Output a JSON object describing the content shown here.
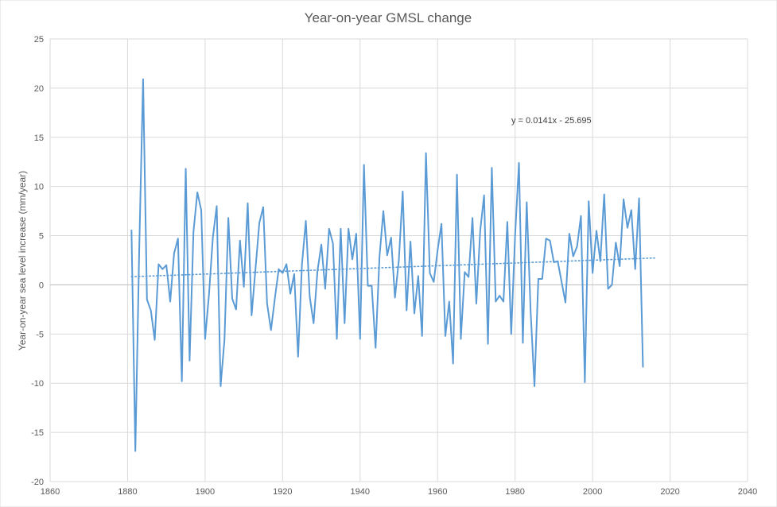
{
  "chart_data": {
    "type": "line",
    "title": "Year-on-year GMSL change",
    "xlabel": "",
    "ylabel": "Year-on-year sea level increase (mm/year)",
    "xlim": [
      1860,
      2040
    ],
    "ylim": [
      -20,
      25
    ],
    "x_ticks": [
      "1860",
      "1880",
      "1900",
      "1920",
      "1940",
      "1960",
      "1980",
      "2000",
      "2020",
      "2040"
    ],
    "y_ticks": [
      "-20",
      "-15",
      "-10",
      "-5",
      "0",
      "5",
      "10",
      "15",
      "20",
      "25"
    ],
    "grid": "vertical and horizontal major gridlines",
    "legend": "none",
    "series_color": "#5b9bd5",
    "gridline_color": "#d9d9d9",
    "trendline": {
      "type": "linear, dotted",
      "equation": "y = 0.0141x - 25.695",
      "x_range": [
        1881,
        2016
      ],
      "slope": 0.0141,
      "intercept": -25.695
    },
    "series": [
      {
        "x": [
          1881,
          1882,
          1883,
          1884,
          1885,
          1886,
          1887,
          1888,
          1889,
          1890,
          1891,
          1892,
          1893,
          1894,
          1895,
          1896,
          1897,
          1898,
          1899,
          1900,
          1901,
          1902,
          1903,
          1904,
          1905,
          1906,
          1907,
          1908,
          1909,
          1910,
          1911,
          1912,
          1913,
          1914,
          1915,
          1916,
          1917,
          1918,
          1919,
          1920,
          1921,
          1922,
          1923,
          1924,
          1925,
          1926,
          1927,
          1928,
          1929,
          1930,
          1931,
          1932,
          1933,
          1934,
          1935,
          1936,
          1937,
          1938,
          1939,
          1940,
          1941,
          1942,
          1943,
          1944,
          1945,
          1946,
          1947,
          1948,
          1949,
          1950,
          1951,
          1952,
          1953,
          1954,
          1955,
          1956,
          1957,
          1958,
          1959,
          1960,
          1961,
          1962,
          1963,
          1964,
          1965,
          1966,
          1967,
          1968,
          1969,
          1970,
          1971,
          1972,
          1973,
          1974,
          1975,
          1976,
          1977,
          1978,
          1979,
          1980,
          1981,
          1982,
          1983,
          1984,
          1985,
          1986,
          1987,
          1988,
          1989,
          1990,
          1991,
          1992,
          1993,
          1994,
          1995,
          1996,
          1997,
          1998,
          1999,
          2000,
          2001,
          2002,
          2003,
          2004,
          2005,
          2006,
          2007,
          2008,
          2009,
          2010,
          2011,
          2012,
          2013
        ],
        "values": [
          5.6,
          -16.9,
          3.6,
          20.9,
          -1.5,
          -2.6,
          -5.6,
          2.1,
          1.6,
          2.0,
          -1.7,
          3.2,
          4.7,
          -9.8,
          11.8,
          -7.7,
          5.4,
          9.4,
          7.6,
          -5.5,
          -1.0,
          4.8,
          8.0,
          -10.3,
          -5.6,
          6.8,
          -1.4,
          -2.5,
          4.5,
          -0.2,
          8.3,
          -3.1,
          1.6,
          6.3,
          7.9,
          -1.9,
          -4.6,
          -1.4,
          1.6,
          1.2,
          2.1,
          -0.9,
          1.1,
          -7.3,
          2.1,
          6.5,
          -1.2,
          -3.9,
          1.4,
          4.1,
          -0.4,
          5.7,
          4.2,
          -5.5,
          5.7,
          -3.9,
          5.7,
          2.6,
          5.2,
          -5.5,
          12.2,
          -0.1,
          -0.1,
          -6.4,
          2.8,
          7.5,
          3.0,
          4.8,
          -1.3,
          2.5,
          9.5,
          -2.6,
          4.4,
          -2.9,
          0.9,
          -5.2,
          13.4,
          1.2,
          0.3,
          3.5,
          6.2,
          -5.2,
          -1.7,
          -8.0,
          11.2,
          -5.5,
          1.3,
          0.8,
          6.8,
          -1.9,
          5.5,
          9.1,
          -6.0,
          11.9,
          -1.7,
          -1.1,
          -1.7,
          6.4,
          -5.0,
          5.0,
          12.4,
          -5.9,
          8.4,
          -2.6,
          -10.3,
          0.6,
          0.6,
          4.7,
          4.5,
          2.3,
          2.4,
          0.3,
          -1.8,
          5.2,
          2.9,
          3.9,
          7.0,
          -9.9,
          8.5,
          1.2,
          5.5,
          2.4,
          9.2,
          -0.4,
          0.0,
          4.3,
          1.9,
          8.7,
          5.8,
          7.6,
          1.6,
          8.8,
          -8.4
        ]
      }
    ]
  }
}
